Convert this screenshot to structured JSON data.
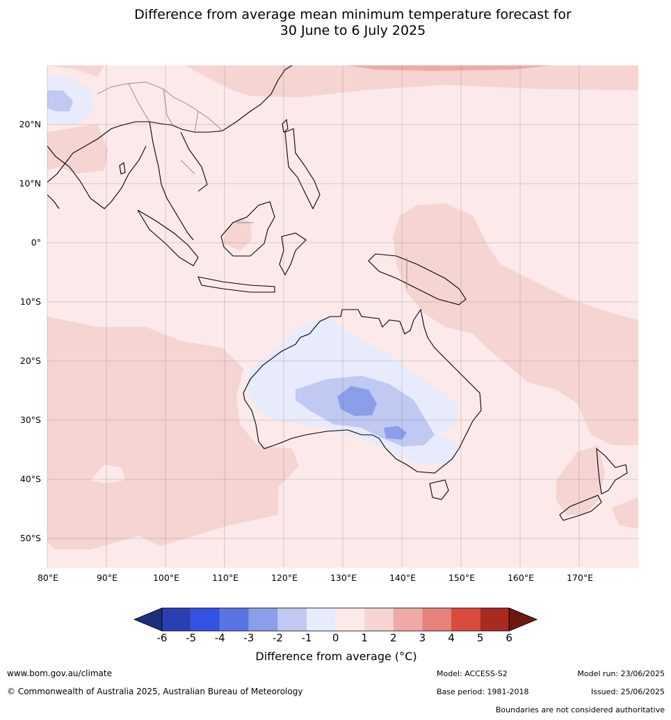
{
  "title": {
    "line1": "Difference from average mean minimum temperature forecast for",
    "line2": "30 June to 6 July 2025"
  },
  "map": {
    "lon_labels": [
      "80°E",
      "90°E",
      "100°E",
      "110°E",
      "120°E",
      "130°E",
      "140°E",
      "150°E",
      "160°E",
      "170°E"
    ],
    "lat_labels": [
      "20°N",
      "10°N",
      "0°",
      "10°S",
      "20°S",
      "30°S",
      "40°S",
      "50°S"
    ],
    "extent": {
      "lon_min": 80,
      "lon_max": 180,
      "lat_min": -55,
      "lat_max": 30
    },
    "background_color": "#fbeae9"
  },
  "colorbar": {
    "ticks": [
      "-6",
      "-5",
      "-4",
      "-3",
      "-2",
      "-1",
      "0",
      "1",
      "2",
      "3",
      "4",
      "5",
      "6"
    ],
    "colors": [
      "#1f2e7a",
      "#2a40b0",
      "#3553e2",
      "#5a74e4",
      "#8a9ee9",
      "#c0c9f2",
      "#e7ebfb",
      "#fbeae9",
      "#f5d4d2",
      "#eeaaa6",
      "#e5827b",
      "#da4b3f",
      "#a82a20",
      "#6f1812"
    ],
    "label": "Difference from average (",
    "label_unit": "°C)"
  },
  "footer": {
    "website": "www.bom.gov.au/climate",
    "copyright": "© Commonwealth of Australia 2025, Australian Bureau of Meteorology",
    "model": "Model: ACCESS-S2",
    "model_run": "Model run: 23/06/2025",
    "base_period": "Base period: 1981-2018",
    "issued": "Issued: 25/06/2025",
    "disclaimer": "Boundaries are not considered authoritative"
  }
}
